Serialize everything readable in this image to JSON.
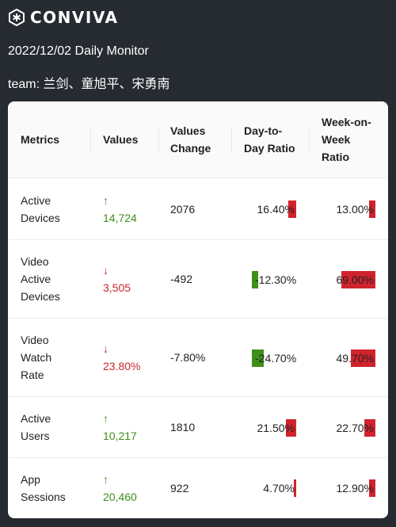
{
  "brand": {
    "name": "CONVIVA",
    "logo_icon": "conviva-logo-icon"
  },
  "title": "2022/12/02 Daily Monitor",
  "team": "team: 兰剑、童旭平、宋勇南",
  "colors": {
    "background": "#262a31",
    "positive": "#3f8f1a",
    "negative": "#c8282c",
    "bar_red": "#d0232d",
    "bar_green": "#3f8f1a"
  },
  "table": {
    "headers": {
      "metrics": "Metrics",
      "values": "Values",
      "values_change_1": "Values",
      "values_change_2": "Change",
      "dtd_1": "Day-to-",
      "dtd_2": "Day Ratio",
      "wow_1": "Week-on-",
      "wow_2": "Week",
      "wow_3": "Ratio"
    },
    "rows": [
      {
        "metric": [
          "Active",
          "Devices"
        ],
        "direction": "up",
        "arrow": "↑",
        "value": "14,724",
        "change": "2076",
        "dtd": "16.40%",
        "dtd_value": 16.4,
        "wow": "13.00%",
        "wow_value": 13.0
      },
      {
        "metric": [
          "Video",
          "Active",
          "Devices"
        ],
        "direction": "down",
        "arrow": "↓",
        "value": "3,505",
        "change": "-492",
        "dtd": "-12.30%",
        "dtd_value": -12.3,
        "wow": "69.00%",
        "wow_value": 69.0
      },
      {
        "metric": [
          "Video",
          "Watch",
          "Rate"
        ],
        "direction": "down",
        "arrow": "↓",
        "value": "23.80%",
        "change": "-7.80%",
        "dtd": "-24.70%",
        "dtd_value": -24.7,
        "wow": "49.70%",
        "wow_value": 49.7
      },
      {
        "metric": [
          "Active",
          "Users"
        ],
        "direction": "up",
        "arrow": "↑",
        "value": "10,217",
        "change": "1810",
        "dtd": "21.50%",
        "dtd_value": 21.5,
        "wow": "22.70%",
        "wow_value": 22.7
      },
      {
        "metric": [
          "App",
          "Sessions"
        ],
        "direction": "up",
        "arrow": "↑",
        "value": "20,460",
        "change": "922",
        "dtd": "4.70%",
        "dtd_value": 4.7,
        "wow": "12.90%",
        "wow_value": 12.9
      }
    ]
  }
}
